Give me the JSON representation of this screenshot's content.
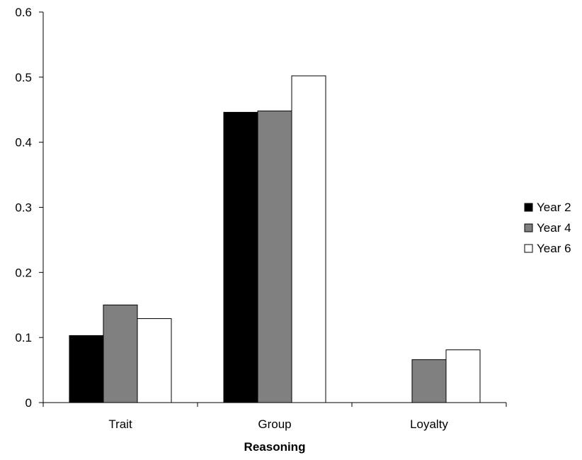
{
  "chart_data": {
    "type": "bar",
    "title": "",
    "xlabel": "Reasoning",
    "ylabel": "",
    "ylim": [
      0,
      0.6
    ],
    "yticks": [
      "0",
      "0.1",
      "0.2",
      "0.3",
      "0.4",
      "0.5",
      "0.6"
    ],
    "categories": [
      "Trait",
      "Group",
      "Loyalty"
    ],
    "series": [
      {
        "name": "Year 2",
        "values": [
          0.103,
          0.446,
          0.0
        ],
        "color": "#000000"
      },
      {
        "name": "Year 4",
        "values": [
          0.15,
          0.448,
          0.066
        ],
        "color": "#808080"
      },
      {
        "name": "Year 6",
        "values": [
          0.129,
          0.502,
          0.081
        ],
        "color": "#ffffff"
      }
    ],
    "grid": false,
    "legend": "right"
  }
}
